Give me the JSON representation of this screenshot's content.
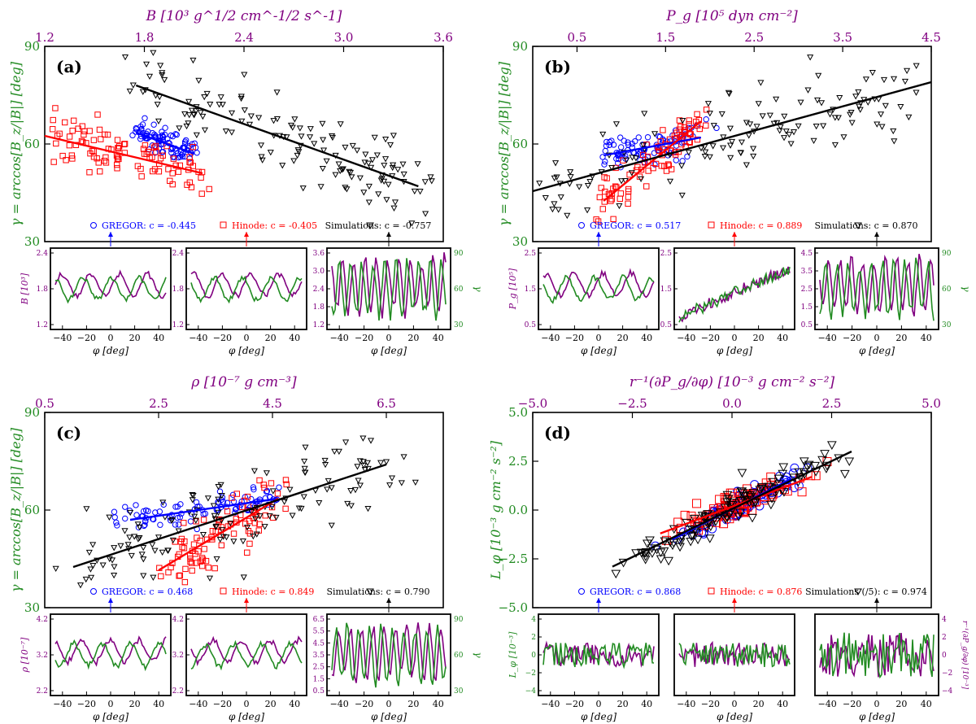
{
  "figure": {
    "colors": {
      "gregor": "#0000ff",
      "hinode": "#ff0000",
      "sim": "#000000",
      "purple": "#800080",
      "green": "#228b22"
    }
  },
  "panels": [
    {
      "id": "a",
      "label": "(a)",
      "yleft": {
        "label": "γ = arccos[B_z/|B|] [deg]",
        "range": [
          30,
          90
        ],
        "ticks": [
          30,
          60,
          90
        ]
      },
      "xtop": {
        "label": "B [10³ g^1/2 cm^-1/2 s^-1]",
        "range": [
          1.2,
          3.6
        ],
        "ticks": [
          "1.2",
          "1.8",
          "2.4",
          "3.0",
          "3.6"
        ]
      },
      "legend": [
        {
          "key": "gregor",
          "text": "GREGOR: c = -0.445"
        },
        {
          "key": "hinode",
          "text": "Hinode: c = -0.405"
        },
        {
          "key": "sim",
          "text": "Simulations: c = -0.757"
        }
      ],
      "series": [
        {
          "name": "GREGOR",
          "marker": "circle",
          "center": [
            1.95,
            62
          ],
          "spread": [
            0.13,
            3
          ],
          "n": 90,
          "fit": [
            [
              1.75,
              63.5
            ],
            [
              2.1,
              57
            ]
          ]
        },
        {
          "name": "Hinode",
          "marker": "square",
          "center": [
            1.95,
            53
          ],
          "spread": [
            0.16,
            6
          ],
          "n": 100,
          "fit": [
            [
              1.2,
              62.5
            ],
            [
              2.15,
              51
            ]
          ]
        },
        {
          "name": "Simulations",
          "marker": "triangle",
          "center": [
            2.65,
            62
          ],
          "spread": [
            0.38,
            8
          ],
          "n": 140,
          "fit": [
            [
              1.75,
              78
            ],
            [
              3.45,
              47
            ]
          ]
        }
      ],
      "subpanels": [
        {
          "ylabel": "B [10³]",
          "yticks": [
            "1.2",
            "1.8",
            "2.4"
          ],
          "yticks_right": [],
          "right_label": ""
        },
        {
          "ylabel": "",
          "yticks": [
            "1.2",
            "1.8",
            "2.4"
          ],
          "yticks_right": [],
          "right_label": ""
        },
        {
          "ylabel": "",
          "yticks": [
            "1.2",
            "1.8",
            "2.4",
            "3.0",
            "3.6"
          ],
          "yticks_right": [
            "30",
            "60",
            "90"
          ],
          "right_label": "γ"
        }
      ]
    },
    {
      "id": "b",
      "label": "(b)",
      "yleft": {
        "label": "γ = arccos[B_z/|B|] [deg]",
        "range": [
          30,
          90
        ],
        "ticks": [
          30,
          60,
          90
        ]
      },
      "xtop": {
        "label": "P_g [10⁵ dyn cm⁻²]",
        "range": [
          0.0,
          4.5
        ],
        "ticks": [
          "0.5",
          "1.5",
          "2.5",
          "3.5",
          "4.5"
        ]
      },
      "legend": [
        {
          "key": "gregor",
          "text": "GREGOR: c = 0.517"
        },
        {
          "key": "hinode",
          "text": "Hinode: c = 0.889"
        },
        {
          "key": "sim",
          "text": "Simulations: c = 0.870"
        }
      ],
      "series": [
        {
          "name": "GREGOR",
          "marker": "circle",
          "center": [
            1.5,
            61
          ],
          "spread": [
            0.4,
            4
          ],
          "n": 90,
          "fit": [
            [
              0.8,
              56.5
            ],
            [
              1.9,
              62
            ]
          ]
        },
        {
          "name": "Hinode",
          "marker": "square",
          "center": [
            1.35,
            53
          ],
          "spread": [
            0.35,
            6
          ],
          "n": 90,
          "fit": [
            [
              0.8,
              42.5
            ],
            [
              1.9,
              67
            ]
          ]
        },
        {
          "name": "Simulations",
          "marker": "triangle",
          "center": [
            1.8,
            60
          ],
          "spread": [
            1.1,
            10
          ],
          "n": 140,
          "fit": [
            [
              0.0,
              45.5
            ],
            [
              4.5,
              79
            ]
          ]
        }
      ],
      "subpanels": [
        {
          "ylabel": "P_g [10⁵]",
          "yticks": [
            "0.5",
            "1.5",
            "2.5"
          ],
          "yticks_right": [],
          "right_label": ""
        },
        {
          "ylabel": "",
          "yticks": [
            "0.5",
            "1.5",
            "2.5"
          ],
          "yticks_right": [],
          "right_label": ""
        },
        {
          "ylabel": "",
          "yticks": [
            "0.5",
            "1.5",
            "2.5",
            "3.5",
            "4.5"
          ],
          "yticks_right": [
            "30",
            "60",
            "90"
          ],
          "right_label": "γ"
        }
      ]
    },
    {
      "id": "c",
      "label": "(c)",
      "yleft": {
        "label": "γ = arccos[B_z/|B|] [deg]",
        "range": [
          30,
          90
        ],
        "ticks": [
          30,
          60,
          90
        ]
      },
      "xtop": {
        "label": "ρ [10⁻⁷ g cm⁻³]",
        "range": [
          0.5,
          7.5
        ],
        "ticks": [
          "0.5",
          "2.5",
          "4.5",
          "6.5"
        ]
      },
      "legend": [
        {
          "key": "gregor",
          "text": "GREGOR: c = 0.468"
        },
        {
          "key": "hinode",
          "text": "Hinode: c = 0.849"
        },
        {
          "key": "sim",
          "text": "Simulations: c = 0.790"
        }
      ],
      "series": [
        {
          "name": "GREGOR",
          "marker": "circle",
          "center": [
            3.6,
            60
          ],
          "spread": [
            0.8,
            3
          ],
          "n": 90,
          "fit": [
            [
              2.0,
              57
            ],
            [
              4.6,
              63.5
            ]
          ]
        },
        {
          "name": "Hinode",
          "marker": "square",
          "center": [
            3.8,
            53
          ],
          "spread": [
            0.6,
            6
          ],
          "n": 90,
          "fit": [
            [
              2.5,
              41.5
            ],
            [
              4.6,
              63.5
            ]
          ]
        },
        {
          "name": "Simulations",
          "marker": "triangle",
          "center": [
            4.0,
            60
          ],
          "spread": [
            1.6,
            10
          ],
          "n": 140,
          "fit": [
            [
              1.0,
              42.5
            ],
            [
              6.5,
              74
            ]
          ]
        }
      ],
      "subpanels": [
        {
          "ylabel": "ρ [10⁻⁷]",
          "yticks": [
            "2.2",
            "3.2",
            "4.2"
          ],
          "yticks_right": [],
          "right_label": ""
        },
        {
          "ylabel": "",
          "yticks": [
            "2.2",
            "3.2",
            "4.2"
          ],
          "yticks_right": [],
          "right_label": ""
        },
        {
          "ylabel": "",
          "yticks": [
            "0.5",
            "1.5",
            "2.5",
            "3.5",
            "4.5",
            "5.5",
            "6.5"
          ],
          "yticks_right": [
            "30",
            "60",
            "90"
          ],
          "right_label": "γ"
        }
      ]
    },
    {
      "id": "d",
      "label": "(d)",
      "yleft": {
        "label": "L_φ [10⁻³ g cm⁻² s⁻²]",
        "range": [
          -5.0,
          5.0
        ],
        "ticks": [
          "−5.0",
          "−2.5",
          "0.0",
          "2.5",
          "5.0"
        ]
      },
      "xtop": {
        "label": "r⁻¹(∂P_g/∂φ) [10⁻³ g cm⁻² s⁻²]",
        "range": [
          -5.0,
          5.0
        ],
        "ticks": [
          "−5.0",
          "−2.5",
          "0.0",
          "2.5",
          "5.0"
        ]
      },
      "legend": [
        {
          "key": "gregor",
          "text": "GREGOR: c = 0.868"
        },
        {
          "key": "hinode",
          "text": "Hinode: c = 0.876"
        },
        {
          "key": "sim",
          "text": "Simulations (/5): c = 0.974"
        }
      ],
      "series": [
        {
          "name": "GREGOR",
          "marker": "circle",
          "center": [
            0.3,
            0.2
          ],
          "spread": [
            1.0,
            0.9
          ],
          "n": 80,
          "fit": [
            [
              -1.5,
              -1.5
            ],
            [
              1.5,
              1.6
            ]
          ],
          "linear": true
        },
        {
          "name": "Hinode",
          "marker": "square",
          "center": [
            0.0,
            0.0
          ],
          "spread": [
            0.9,
            0.9
          ],
          "n": 90,
          "fit": [
            [
              -1.8,
              -1.2
            ],
            [
              2.0,
              1.7
            ]
          ],
          "linear": true
        },
        {
          "name": "Simulations",
          "marker": "triangle",
          "center": [
            0.0,
            0.0
          ],
          "spread": [
            1.4,
            1.3
          ],
          "n": 120,
          "fit": [
            [
              -3.0,
              -2.9
            ],
            [
              3.0,
              3.0
            ]
          ],
          "linear": true
        }
      ],
      "subpanels": [
        {
          "ylabel": "L_φ [10⁻³]",
          "yticks": [
            "−4",
            "−2",
            "0",
            "2",
            "4"
          ],
          "yticks_right": [],
          "right_label": ""
        },
        {
          "ylabel": "",
          "yticks": [],
          "yticks_right": [],
          "right_label": ""
        },
        {
          "ylabel": "",
          "yticks": [],
          "yticks_right": [
            "−4",
            "−2",
            "0",
            "2",
            "4"
          ],
          "right_label": "r⁻¹(∂P_g/∂φ) [10⁻³]"
        }
      ]
    }
  ],
  "sub_xaxis": {
    "label": "φ [deg]",
    "ticks": [
      "−40",
      "−20",
      "0",
      "20",
      "40"
    ],
    "range": [
      -50,
      50
    ]
  }
}
